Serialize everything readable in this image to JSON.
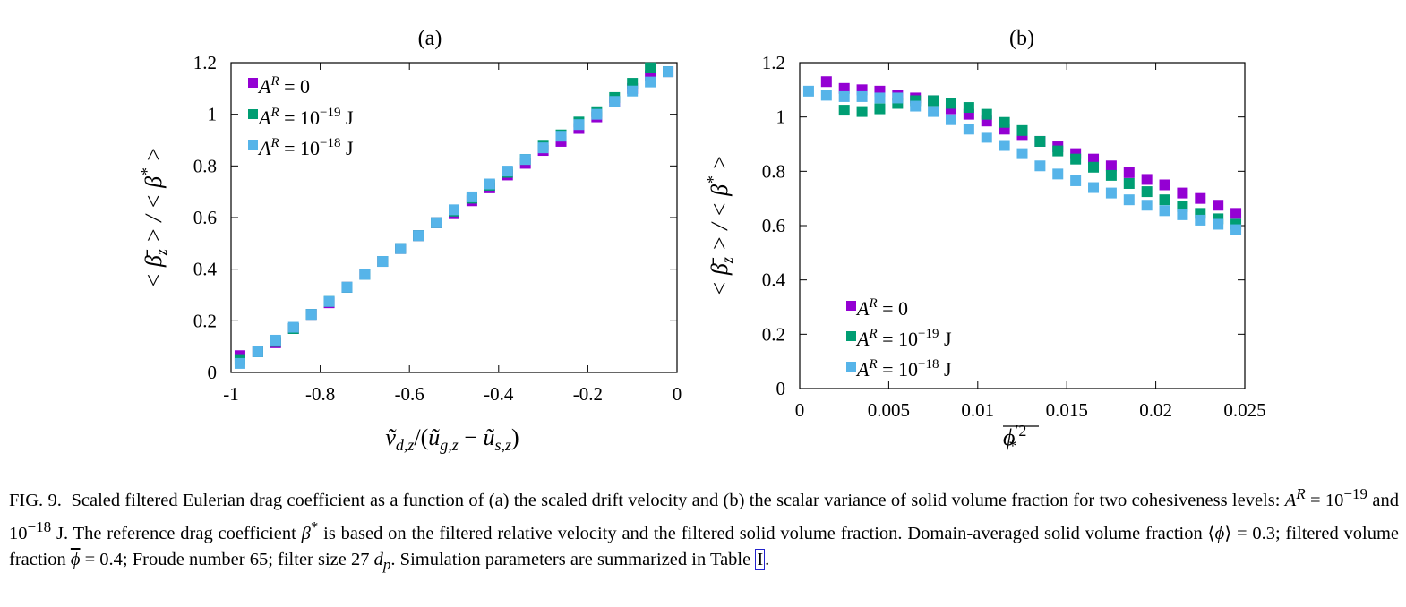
{
  "colors": {
    "series1": "#9400D3",
    "series2": "#009E73",
    "series3": "#56B4E9"
  },
  "chart_data": [
    {
      "panel": "(a)",
      "type": "scatter",
      "xlabel": "ṽ_{d,z} / (ũ_{g,z} − ũ_{s,z})",
      "ylabel": "< β̄_z > / < β* >",
      "xlim": [
        -1,
        0
      ],
      "ylim": [
        0,
        1.2
      ],
      "xticks": [
        "-1",
        "-0.8",
        "-0.6",
        "-0.4",
        "-0.2",
        "0"
      ],
      "xtick_values": [
        -1,
        -0.8,
        -0.6,
        -0.4,
        -0.2,
        0
      ],
      "yticks": [
        "0",
        "0.2",
        "0.4",
        "0.6",
        "0.8",
        "1",
        "1.2"
      ],
      "ytick_values": [
        0,
        0.2,
        0.4,
        0.6,
        0.8,
        1,
        1.2
      ],
      "legend_position": "top-left",
      "series": [
        {
          "name": "A^R = 0",
          "x": [
            -0.98,
            -0.94,
            -0.9,
            -0.86,
            -0.82,
            -0.78,
            -0.74,
            -0.7,
            -0.66,
            -0.62,
            -0.58,
            -0.54,
            -0.5,
            -0.46,
            -0.42,
            -0.38,
            -0.34,
            -0.3,
            -0.26,
            -0.22,
            -0.18,
            -0.14,
            -0.1,
            -0.06,
            -0.02
          ],
          "y": [
            0.065,
            0.08,
            0.115,
            0.17,
            0.225,
            0.27,
            0.33,
            0.38,
            0.43,
            0.48,
            0.53,
            0.58,
            0.615,
            0.665,
            0.715,
            0.765,
            0.81,
            0.86,
            0.895,
            0.945,
            0.99,
            1.05,
            1.1,
            1.15,
            1.165
          ]
        },
        {
          "name": "A^R = 10^{-19} J",
          "x": [
            -0.98,
            -0.94,
            -0.9,
            -0.86,
            -0.82,
            -0.78,
            -0.74,
            -0.7,
            -0.66,
            -0.62,
            -0.58,
            -0.54,
            -0.5,
            -0.46,
            -0.42,
            -0.38,
            -0.34,
            -0.3,
            -0.26,
            -0.22,
            -0.18,
            -0.14,
            -0.1,
            -0.06,
            -0.02
          ],
          "y": [
            0.05,
            0.08,
            0.12,
            0.17,
            0.225,
            0.275,
            0.33,
            0.38,
            0.43,
            0.48,
            0.53,
            0.58,
            0.625,
            0.675,
            0.725,
            0.775,
            0.825,
            0.88,
            0.92,
            0.97,
            1.01,
            1.065,
            1.12,
            1.18,
            1.165
          ]
        },
        {
          "name": "A^R = 10^{-18} J",
          "x": [
            -0.98,
            -0.94,
            -0.9,
            -0.86,
            -0.82,
            -0.78,
            -0.74,
            -0.7,
            -0.66,
            -0.62,
            -0.58,
            -0.54,
            -0.5,
            -0.46,
            -0.42,
            -0.38,
            -0.34,
            -0.3,
            -0.26,
            -0.22,
            -0.18,
            -0.14,
            -0.1,
            -0.06,
            -0.02
          ],
          "y": [
            0.035,
            0.08,
            0.125,
            0.175,
            0.225,
            0.275,
            0.33,
            0.38,
            0.43,
            0.48,
            0.53,
            0.58,
            0.63,
            0.68,
            0.73,
            0.78,
            0.825,
            0.87,
            0.915,
            0.96,
            1.0,
            1.05,
            1.09,
            1.125,
            1.165
          ]
        }
      ]
    },
    {
      "panel": "(b)",
      "type": "scatter",
      "xlabel": "\\overline{φ′²_*}",
      "ylabel": "< β̄_z > / < β* >",
      "xlim": [
        0,
        0.025
      ],
      "ylim": [
        0,
        1.2
      ],
      "xticks": [
        "0",
        "0.005",
        "0.01",
        "0.015",
        "0.02",
        "0.025"
      ],
      "xtick_values": [
        0,
        0.005,
        0.01,
        0.015,
        0.02,
        0.025
      ],
      "yticks": [
        "0",
        "0.2",
        "0.4",
        "0.6",
        "0.8",
        "1",
        "1.2"
      ],
      "ytick_values": [
        0,
        0.2,
        0.4,
        0.6,
        0.8,
        1,
        1.2
      ],
      "legend_position": "bottom-left",
      "series": [
        {
          "name": "A^R = 0",
          "x": [
            0.0015,
            0.0025,
            0.0035,
            0.0045,
            0.0055,
            0.0065,
            0.0075,
            0.0085,
            0.0095,
            0.0105,
            0.0115,
            0.0125,
            0.0135,
            0.0145,
            0.0155,
            0.0165,
            0.0175,
            0.0185,
            0.0195,
            0.0205,
            0.0215,
            0.0225,
            0.0235,
            0.0245
          ],
          "y": [
            1.13,
            1.105,
            1.1,
            1.095,
            1.08,
            1.07,
            1.06,
            1.03,
            1.01,
            0.985,
            0.955,
            0.935,
            0.91,
            0.89,
            0.865,
            0.845,
            0.82,
            0.795,
            0.77,
            0.75,
            0.72,
            0.7,
            0.675,
            0.645
          ]
        },
        {
          "name": "A^R = 10^{-19} J",
          "x": [
            0.0025,
            0.0035,
            0.0045,
            0.0055,
            0.0065,
            0.0075,
            0.0085,
            0.0095,
            0.0105,
            0.0115,
            0.0125,
            0.0135,
            0.0145,
            0.0155,
            0.0165,
            0.0175,
            0.0185,
            0.0195,
            0.0205,
            0.0215,
            0.0225,
            0.0235,
            0.0245
          ],
          "y": [
            1.025,
            1.02,
            1.03,
            1.05,
            1.06,
            1.06,
            1.05,
            1.035,
            1.01,
            0.98,
            0.95,
            0.91,
            0.875,
            0.845,
            0.815,
            0.785,
            0.755,
            0.725,
            0.695,
            0.67,
            0.645,
            0.625,
            0.605
          ]
        },
        {
          "name": "A^R = 10^{-18} J",
          "x": [
            0.0005,
            0.0015,
            0.0025,
            0.0035,
            0.0045,
            0.0055,
            0.0065,
            0.0075,
            0.0085,
            0.0095,
            0.0105,
            0.0115,
            0.0125,
            0.0135,
            0.0145,
            0.0155,
            0.0165,
            0.0175,
            0.0185,
            0.0195,
            0.0205,
            0.0215,
            0.0225,
            0.0235,
            0.0245
          ],
          "y": [
            1.095,
            1.08,
            1.075,
            1.075,
            1.07,
            1.07,
            1.04,
            1.02,
            0.99,
            0.955,
            0.925,
            0.895,
            0.865,
            0.82,
            0.79,
            0.765,
            0.74,
            0.72,
            0.695,
            0.675,
            0.655,
            0.64,
            0.62,
            0.605,
            0.585
          ]
        }
      ]
    }
  ],
  "caption": {
    "label": "FIG. 9.",
    "text_1": "Scaled filtered Eulerian drag coefficient as a function of (a) the scaled drift velocity and (b) the scalar variance of solid volume fraction for two cohesiveness levels: ",
    "ar_symbol": "A",
    "ar_sup": "R",
    "eq_1": " = 10",
    "exp_1": "−19",
    "and_text": " and 10",
    "exp_2": "−18",
    "text_2": " J. The reference drag coefficient ",
    "beta_symbol": "β",
    "beta_sup": "*",
    "text_3": " is based on the filtered relative velocity and the filtered solid volume fraction. Domain-averaged solid volume fraction ⟨",
    "phi_symbol": "ϕ",
    "text_4": "⟩ = 0.3; filtered volume fraction ",
    "phi_bar": "ϕ",
    "text_5": " = 0.4; Froude number 65; filter size 27 ",
    "dp_d": "d",
    "dp_sub": "p",
    "text_6": ". Simulation parameters are summarized in Table ",
    "table_ref": "I",
    "text_end": "."
  }
}
